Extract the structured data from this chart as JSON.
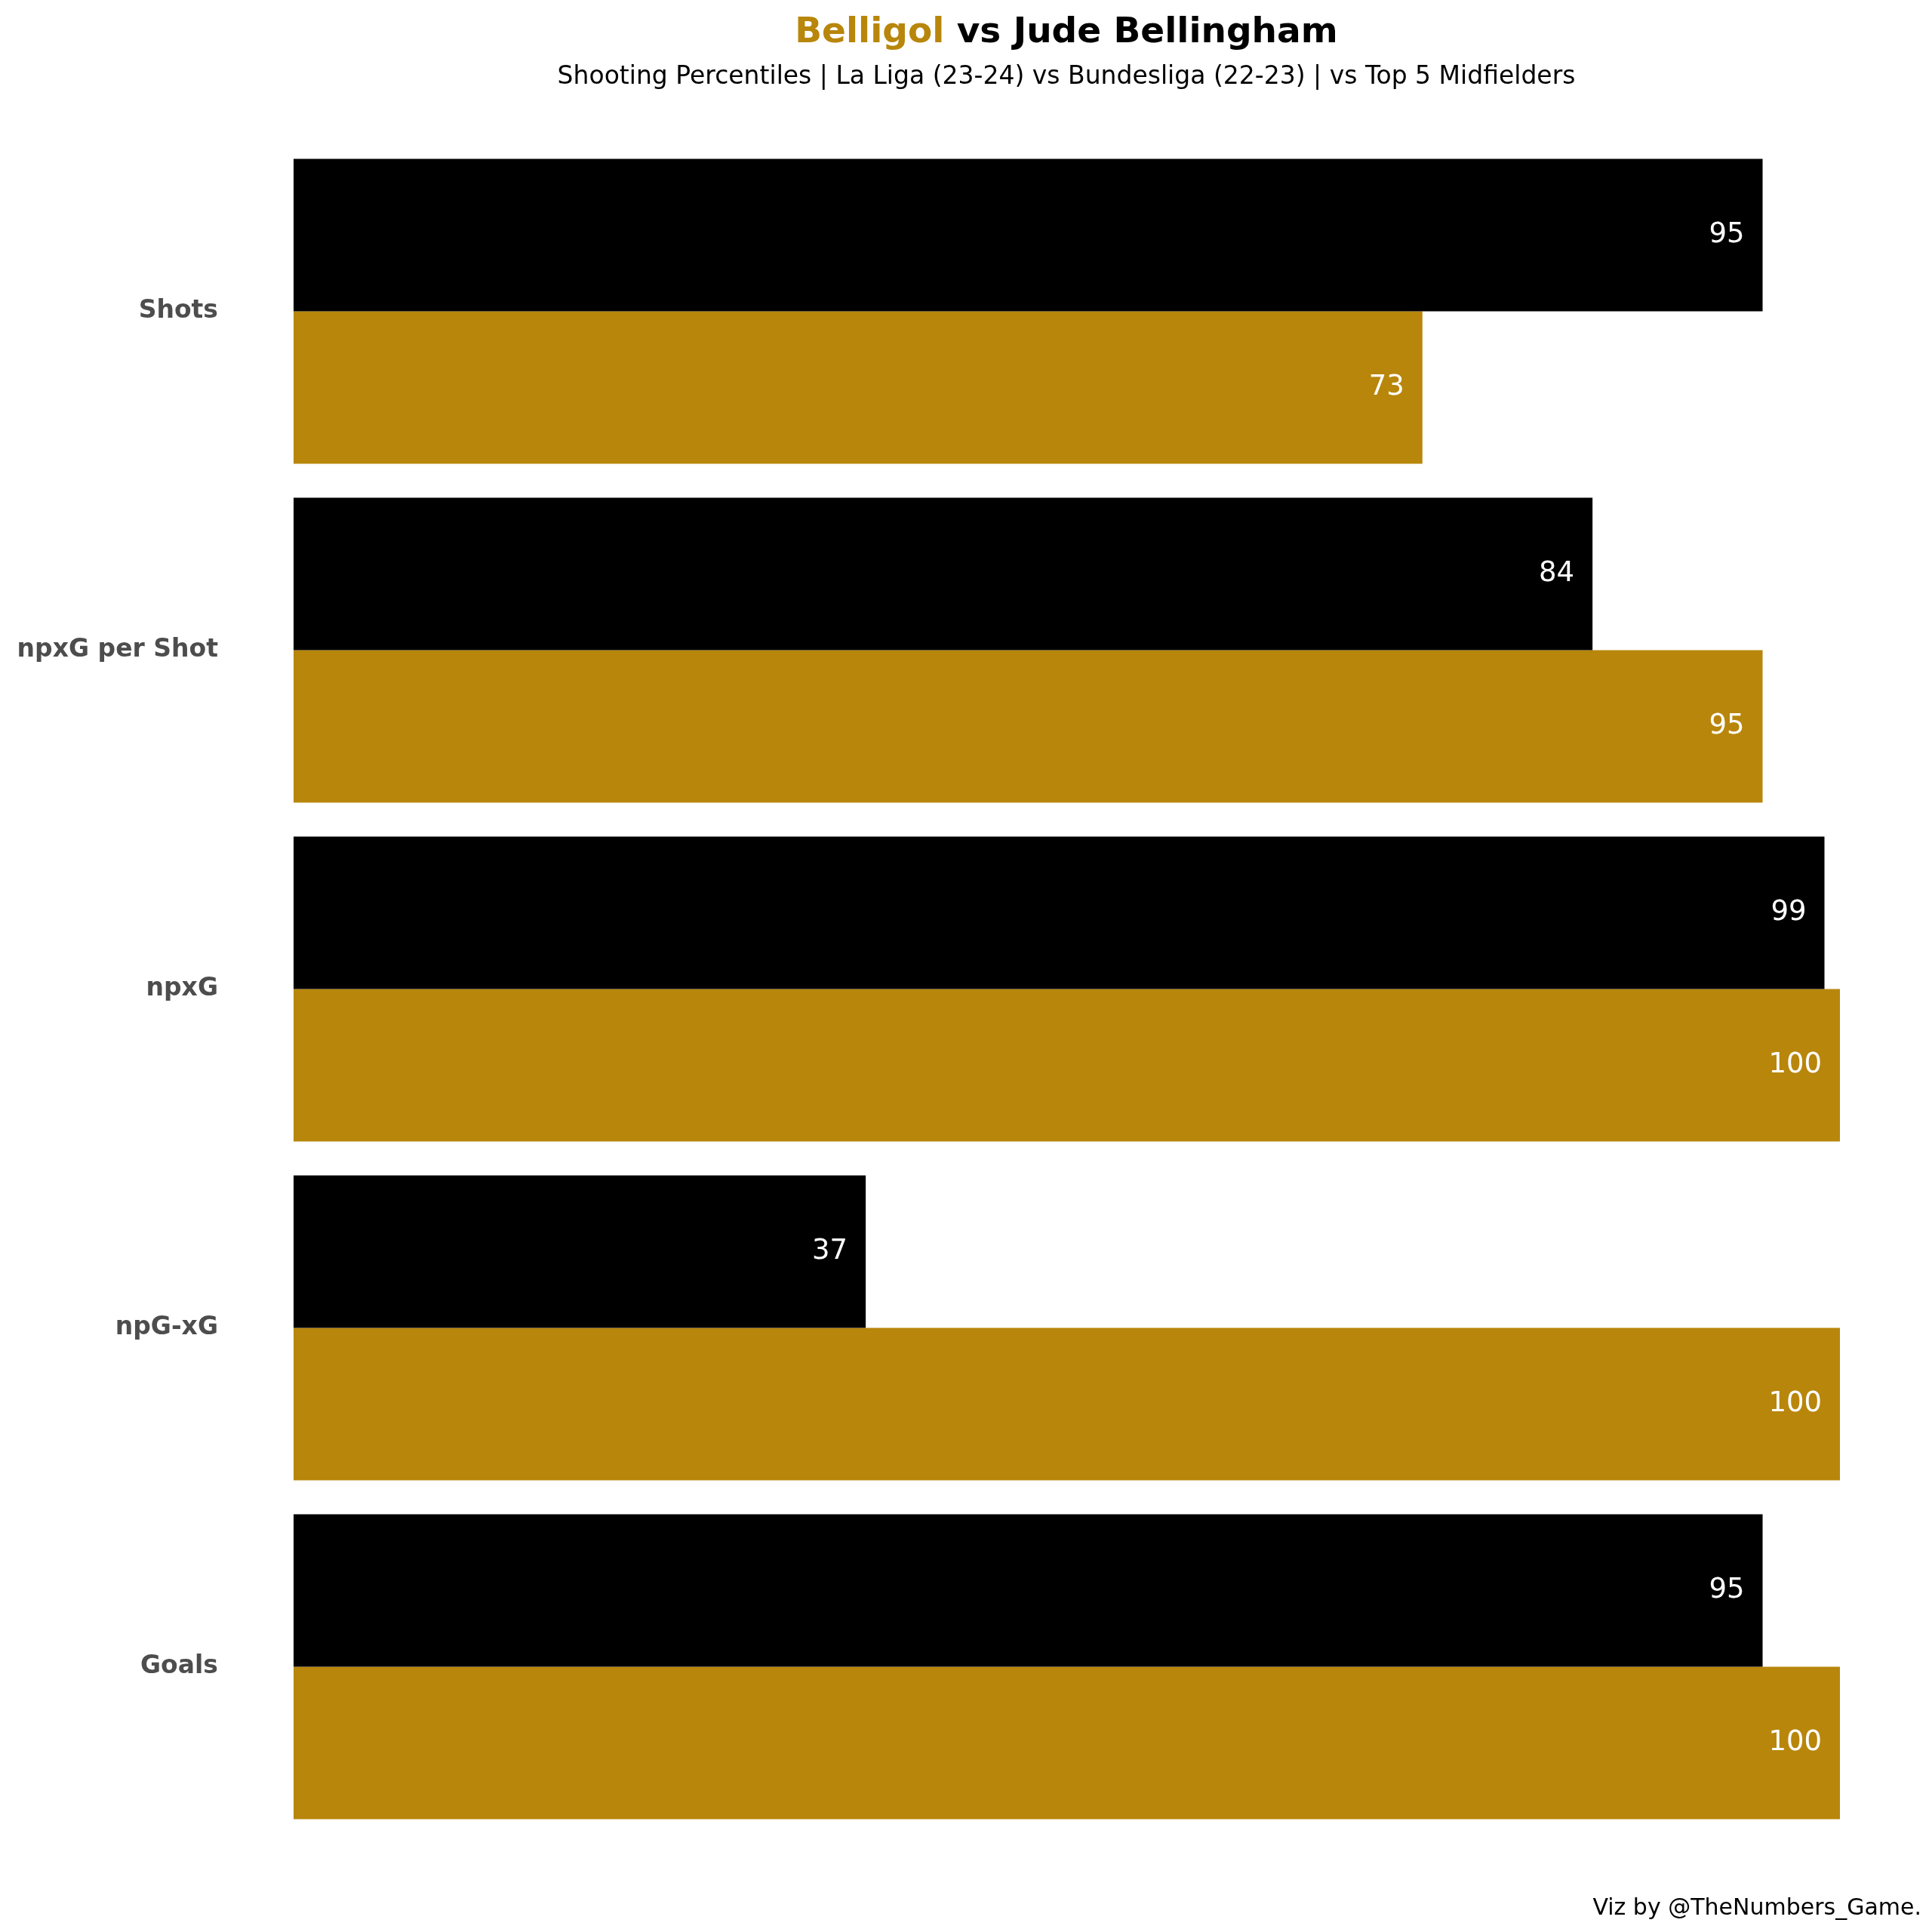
{
  "chart_data": {
    "type": "bar",
    "orientation": "horizontal",
    "title": "Belligol vs Jude Bellingham",
    "subtitle": "Shooting Percentiles | La Liga (23-24) vs Bundesliga (22-23) | vs Top 5 Midfielders",
    "annotations": [
      "Viz by @TheNumbers_Game."
    ],
    "categories": [
      "Shots",
      "npxG per Shot",
      "npxG",
      "npG-xG",
      "Goals"
    ],
    "series": [
      {
        "color": "#000000",
        "values": [
          95,
          84,
          99,
          37,
          95
        ]
      },
      {
        "color": "#b8860b",
        "values": [
          73,
          95,
          100,
          100,
          100
        ]
      }
    ],
    "xlim": [
      0,
      100
    ],
    "tick_labels": "y",
    "data_labels": true
  }
}
